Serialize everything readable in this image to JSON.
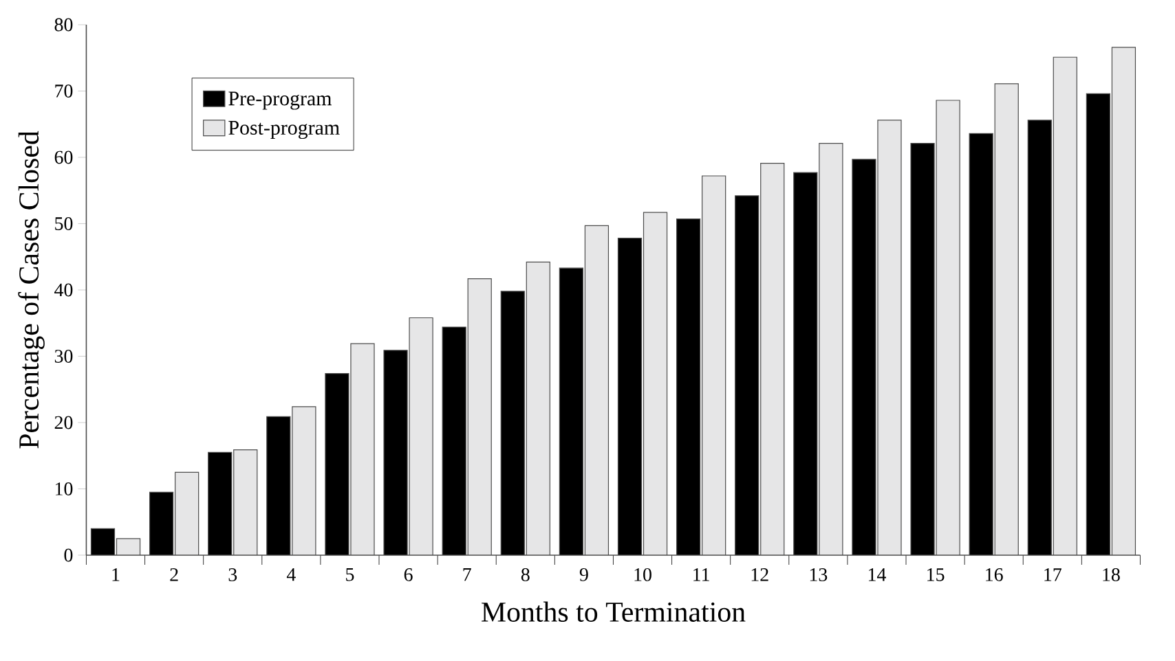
{
  "chart_data": {
    "type": "bar",
    "xlabel": "Months to Termination",
    "ylabel": "Percentage of Cases Closed",
    "categories": [
      "1",
      "2",
      "3",
      "4",
      "5",
      "6",
      "7",
      "8",
      "9",
      "10",
      "11",
      "12",
      "13",
      "14",
      "15",
      "16",
      "17",
      "18"
    ],
    "series": [
      {
        "name": "Pre-program",
        "color": "#000000",
        "values": [
          4.0,
          9.5,
          15.5,
          20.9,
          27.4,
          30.9,
          34.4,
          39.8,
          43.3,
          47.8,
          50.7,
          54.2,
          57.7,
          59.7,
          62.1,
          63.6,
          65.6,
          69.6
        ]
      },
      {
        "name": "Post-program",
        "color": "#e6e6e7",
        "values": [
          2.5,
          12.5,
          15.9,
          22.4,
          31.9,
          35.8,
          41.7,
          44.2,
          49.7,
          51.7,
          57.2,
          59.1,
          62.1,
          65.6,
          68.6,
          71.1,
          75.1,
          76.6
        ]
      }
    ],
    "ylim": [
      0,
      80
    ],
    "yticks": [
      0,
      10,
      20,
      30,
      40,
      50,
      60,
      70,
      80
    ],
    "grid": false,
    "legend": "top left"
  }
}
